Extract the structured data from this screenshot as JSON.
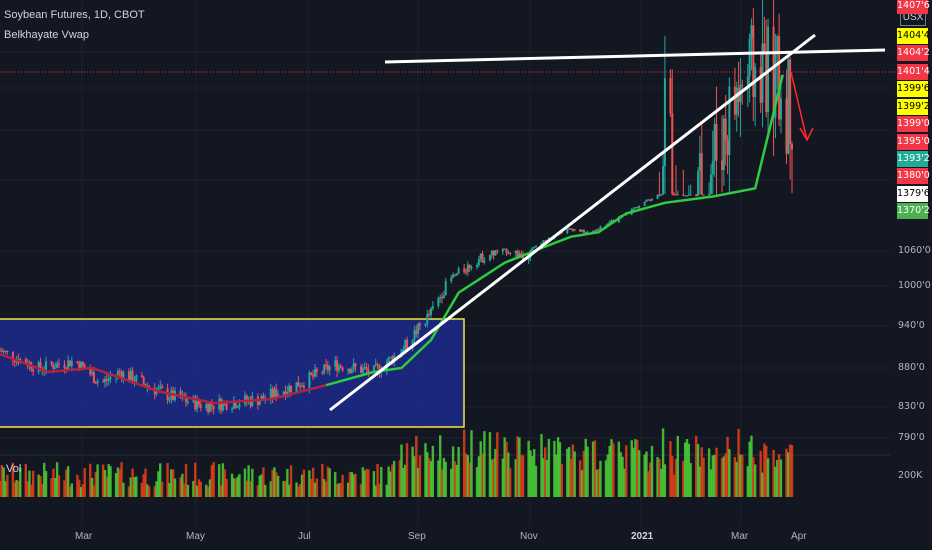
{
  "header": {
    "title": "Soybean Futures, 1D, CBOT",
    "indicator": "Belkhayate Vwap",
    "currency": "USX"
  },
  "volume_label": "Vol",
  "price_axis_labels": [
    "1060'0",
    "1000'0",
    "940'0",
    "880'0",
    "830'0",
    "790'0"
  ],
  "volume_axis_label": "200K",
  "time_axis_labels": [
    {
      "label": "Mar",
      "bold": false
    },
    {
      "label": "May",
      "bold": false
    },
    {
      "label": "Jul",
      "bold": false
    },
    {
      "label": "Sep",
      "bold": false
    },
    {
      "label": "Nov",
      "bold": false
    },
    {
      "label": "2021",
      "bold": true
    },
    {
      "label": "Mar",
      "bold": false
    },
    {
      "label": "Apr",
      "bold": false
    }
  ],
  "price_tags": [
    {
      "text": "1407'6",
      "bg": "#f23645",
      "fg": "#ffffff"
    },
    {
      "text": "1404'4",
      "bg": "#ffff00",
      "fg": "#000000"
    },
    {
      "text": "1404'2",
      "bg": "#f23645",
      "fg": "#ffffff"
    },
    {
      "text": "1401'4",
      "bg": "#f23645",
      "fg": "#ffffff"
    },
    {
      "text": "1399'6",
      "bg": "#ffff00",
      "fg": "#000000"
    },
    {
      "text": "1399'2",
      "bg": "#ffff00",
      "fg": "#000000"
    },
    {
      "text": "1399'0",
      "bg": "#f23645",
      "fg": "#ffffff"
    },
    {
      "text": "1395'0",
      "bg": "#f23645",
      "fg": "#ffffff"
    },
    {
      "text": "1393'2",
      "bg": "#22ab94",
      "fg": "#ffffff"
    },
    {
      "text": "1380'0",
      "bg": "#f23645",
      "fg": "#ffffff"
    },
    {
      "text": "1379'6",
      "bg": "#ffffff",
      "fg": "#000000"
    },
    {
      "text": "1370'2",
      "bg": "#4caf50",
      "fg": "#ffffff"
    }
  ],
  "colors": {
    "background": "#131722",
    "up_candle": "#26a69a",
    "down_candle": "#ef5350",
    "vwap_bear": "#b2243d",
    "vwap_bull": "#2ecc40",
    "box_fill": "#1c2a8a",
    "box_border": "#f5e642",
    "trendline": "#ffffff",
    "arrow": "#ff2a2a"
  },
  "chart_data": {
    "type": "candlestick",
    "description_units": "US cents per bushel",
    "series": [
      {
        "name": "Belkhayate Vwap",
        "points": [
          {
            "date": "2020-01-20",
            "value": 900
          },
          {
            "date": "2020-02-15",
            "value": 875
          },
          {
            "date": "2020-03-10",
            "value": 880
          },
          {
            "date": "2020-03-25",
            "value": 868
          },
          {
            "date": "2020-04-15",
            "value": 850
          },
          {
            "date": "2020-05-15",
            "value": 835
          },
          {
            "date": "2020-06-15",
            "value": 840
          },
          {
            "date": "2020-07-15",
            "value": 858
          },
          {
            "date": "2020-08-10",
            "value": 875
          },
          {
            "date": "2020-08-25",
            "value": 880
          },
          {
            "date": "2020-09-10",
            "value": 920
          },
          {
            "date": "2020-09-25",
            "value": 990
          },
          {
            "date": "2020-10-20",
            "value": 1040
          },
          {
            "date": "2020-11-10",
            "value": 1080
          },
          {
            "date": "2020-11-25",
            "value": 1140
          },
          {
            "date": "2020-12-10",
            "value": 1165
          },
          {
            "date": "2020-12-25",
            "value": 1270
          },
          {
            "date": "2021-01-15",
            "value": 1330
          },
          {
            "date": "2021-02-10",
            "value": 1365
          },
          {
            "date": "2021-03-05",
            "value": 1380
          },
          {
            "date": "2021-03-20",
            "value": 1400
          }
        ]
      }
    ]
  }
}
